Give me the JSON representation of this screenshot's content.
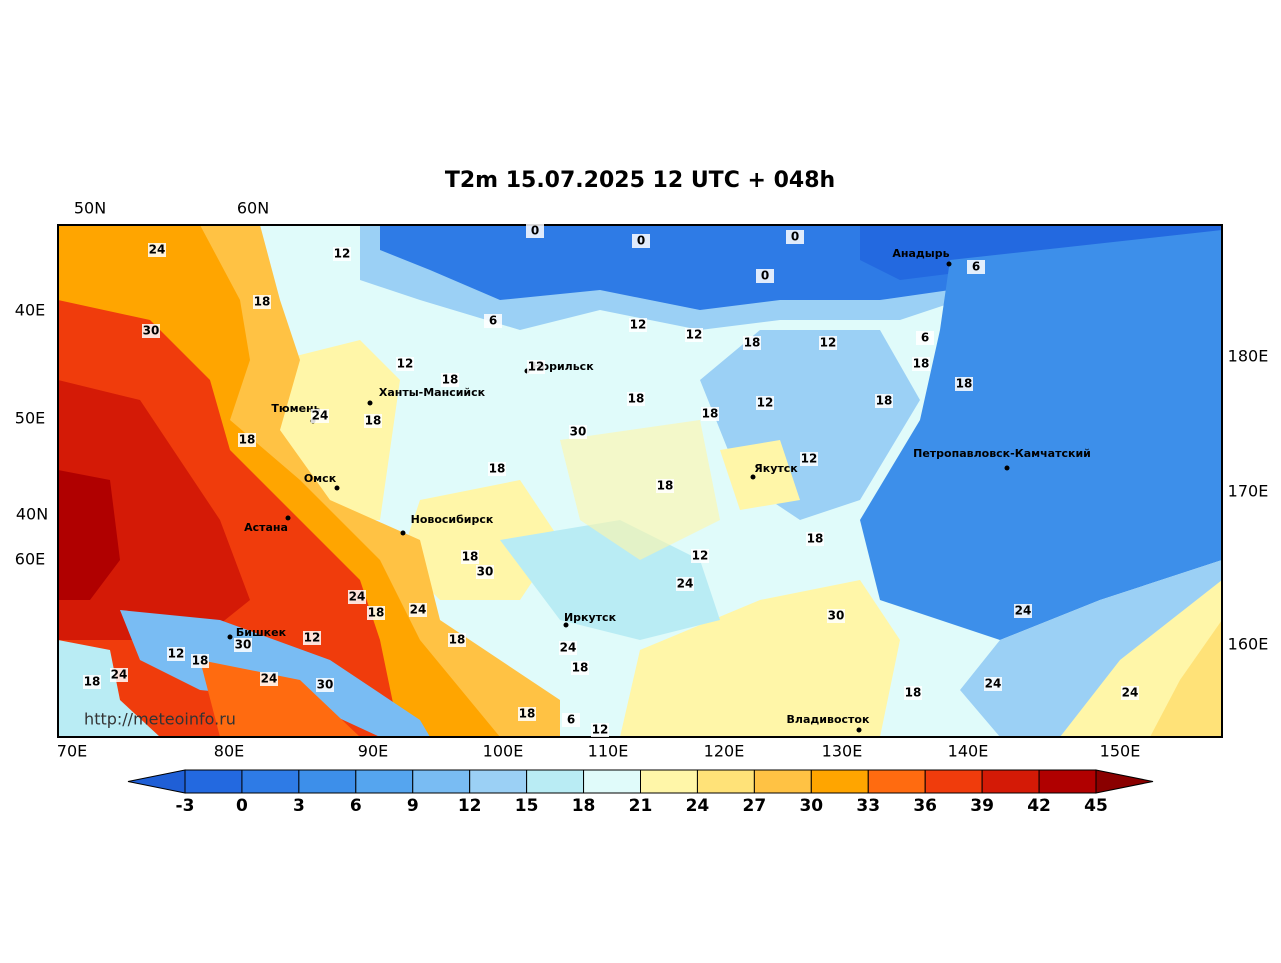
{
  "header": {
    "title": "T2m 15.07.2025 12 UTC + 048h"
  },
  "map": {
    "top_labels": [
      "50N",
      "60N"
    ],
    "left_labels": [
      "40E",
      "50E",
      "40N",
      "60E"
    ],
    "right_labels": [
      "180E",
      "170E",
      "160E"
    ],
    "bottom_labels": [
      "70E",
      "80E",
      "90E",
      "100E",
      "110E",
      "120E",
      "130E",
      "140E",
      "150E"
    ],
    "cities": [
      "Анадырь",
      "Норильск",
      "Ханты-Мансийск",
      "Тюмень",
      "Якутск",
      "Петропавловск-Камчатский",
      "Омск",
      "Астана",
      "Новосибирск",
      "Иркутск",
      "Бишкек",
      "Владивосток"
    ],
    "contour_labels": [
      "24",
      "12",
      "0",
      "0",
      "0",
      "0",
      "6",
      "18",
      "30",
      "6",
      "12",
      "12",
      "18",
      "12",
      "6",
      "12",
      "18",
      "12",
      "18",
      "18",
      "18",
      "18",
      "18",
      "18",
      "12",
      "30",
      "18",
      "18",
      "12",
      "24",
      "18",
      "12",
      "18",
      "18",
      "30",
      "24",
      "18",
      "24",
      "18",
      "24",
      "30",
      "12",
      "24",
      "30",
      "18",
      "24",
      "12",
      "18",
      "24",
      "18",
      "24",
      "30",
      "18",
      "18",
      "24",
      "24",
      "6",
      "12"
    ],
    "watermark": "http://meteoinfo.ru"
  },
  "colorbar": {
    "ticks": [
      -3,
      0,
      3,
      6,
      9,
      12,
      15,
      18,
      21,
      24,
      27,
      30,
      33,
      36,
      39,
      42,
      45
    ],
    "colors": [
      "#1f5fd6",
      "#2369e0",
      "#2e7be6",
      "#3d8fea",
      "#55a5ef",
      "#79bcf3",
      "#9bd0f5",
      "#b9ecf4",
      "#e0fbfa",
      "#fff6a8",
      "#ffe278",
      "#ffc244",
      "#ffa500",
      "#ff6b10",
      "#f03c0c",
      "#d41a06",
      "#b00000",
      "#8a0000"
    ]
  }
}
